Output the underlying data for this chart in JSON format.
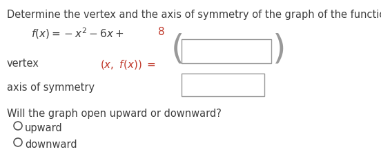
{
  "title": "Determine the vertex and the axis of symmetry of the graph of the function.",
  "title_color": "#3d3d3d",
  "title_fontsize": 10.5,
  "function_color_main": "#c0392b",
  "function_color_black": "#3d3d3d",
  "vertex_label": "vertex",
  "vertex_color": "#3d3d3d",
  "vertex_eq_color": "#c0392b",
  "axis_sym_label": "axis of symmetry",
  "axis_sym_color": "#3d3d3d",
  "question_label": "Will the graph open upward or downward?",
  "option1": "upward",
  "option2": "downward",
  "text_color": "#3d3d3d",
  "bg_color": "#ffffff",
  "box_edge_color": "#999999"
}
